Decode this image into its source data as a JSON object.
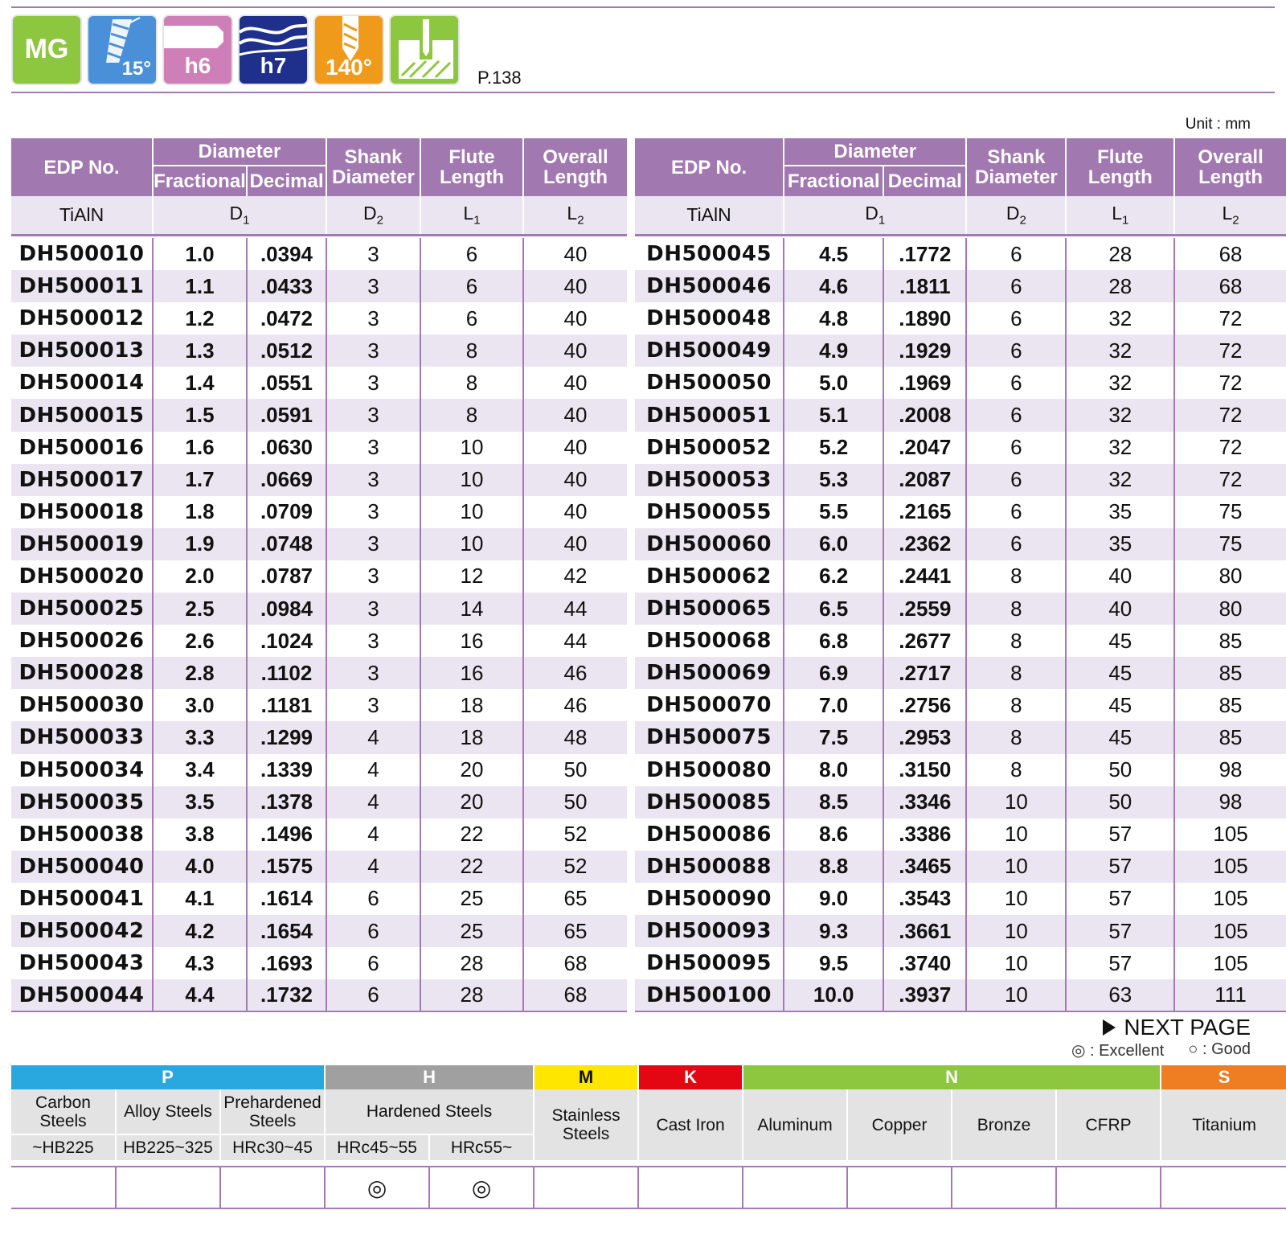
{
  "icons": [
    {
      "name": "mg",
      "label": "MG",
      "color": "#8dc63f"
    },
    {
      "name": "helix",
      "label": "15°",
      "color": "#4a90d9"
    },
    {
      "name": "shank-tol",
      "label": "h6",
      "color": "#cf7fb8"
    },
    {
      "name": "dia-tol",
      "label": "h7",
      "color": "#1e2f8c"
    },
    {
      "name": "point",
      "label": "140°",
      "color": "#f09a1c"
    },
    {
      "name": "application",
      "label": "",
      "color": "#8dc63f"
    }
  ],
  "page_ref": "P.138",
  "unit": "Unit : mm",
  "headers": {
    "edp": "EDP No.",
    "diameter": "Diameter",
    "fractional": "Fractional",
    "decimal": "Decimal",
    "shank1": "Shank",
    "shank2": "Diameter",
    "flute1": "Flute",
    "flute2": "Length",
    "overall1": "Overall",
    "overall2": "Length",
    "coating": "TiAlN",
    "d1": "D",
    "d1_sub": "1",
    "d2": "D",
    "d2_sub": "2",
    "l1": "L",
    "l1_sub": "1",
    "l2": "L",
    "l2_sub": "2"
  },
  "left_rows": [
    [
      "DH500010",
      "1.0",
      ".0394",
      "3",
      "6",
      "40"
    ],
    [
      "DH500011",
      "1.1",
      ".0433",
      "3",
      "6",
      "40"
    ],
    [
      "DH500012",
      "1.2",
      ".0472",
      "3",
      "6",
      "40"
    ],
    [
      "DH500013",
      "1.3",
      ".0512",
      "3",
      "8",
      "40"
    ],
    [
      "DH500014",
      "1.4",
      ".0551",
      "3",
      "8",
      "40"
    ],
    [
      "DH500015",
      "1.5",
      ".0591",
      "3",
      "8",
      "40"
    ],
    [
      "DH500016",
      "1.6",
      ".0630",
      "3",
      "10",
      "40"
    ],
    [
      "DH500017",
      "1.7",
      ".0669",
      "3",
      "10",
      "40"
    ],
    [
      "DH500018",
      "1.8",
      ".0709",
      "3",
      "10",
      "40"
    ],
    [
      "DH500019",
      "1.9",
      ".0748",
      "3",
      "10",
      "40"
    ],
    [
      "DH500020",
      "2.0",
      ".0787",
      "3",
      "12",
      "42"
    ],
    [
      "DH500025",
      "2.5",
      ".0984",
      "3",
      "14",
      "44"
    ],
    [
      "DH500026",
      "2.6",
      ".1024",
      "3",
      "16",
      "44"
    ],
    [
      "DH500028",
      "2.8",
      ".1102",
      "3",
      "16",
      "46"
    ],
    [
      "DH500030",
      "3.0",
      ".1181",
      "3",
      "18",
      "46"
    ],
    [
      "DH500033",
      "3.3",
      ".1299",
      "4",
      "18",
      "48"
    ],
    [
      "DH500034",
      "3.4",
      ".1339",
      "4",
      "20",
      "50"
    ],
    [
      "DH500035",
      "3.5",
      ".1378",
      "4",
      "20",
      "50"
    ],
    [
      "DH500038",
      "3.8",
      ".1496",
      "4",
      "22",
      "52"
    ],
    [
      "DH500040",
      "4.0",
      ".1575",
      "4",
      "22",
      "52"
    ],
    [
      "DH500041",
      "4.1",
      ".1614",
      "6",
      "25",
      "65"
    ],
    [
      "DH500042",
      "4.2",
      ".1654",
      "6",
      "25",
      "65"
    ],
    [
      "DH500043",
      "4.3",
      ".1693",
      "6",
      "28",
      "68"
    ],
    [
      "DH500044",
      "4.4",
      ".1732",
      "6",
      "28",
      "68"
    ]
  ],
  "right_rows": [
    [
      "DH500045",
      "4.5",
      ".1772",
      "6",
      "28",
      "68"
    ],
    [
      "DH500046",
      "4.6",
      ".1811",
      "6",
      "28",
      "68"
    ],
    [
      "DH500048",
      "4.8",
      ".1890",
      "6",
      "32",
      "72"
    ],
    [
      "DH500049",
      "4.9",
      ".1929",
      "6",
      "32",
      "72"
    ],
    [
      "DH500050",
      "5.0",
      ".1969",
      "6",
      "32",
      "72"
    ],
    [
      "DH500051",
      "5.1",
      ".2008",
      "6",
      "32",
      "72"
    ],
    [
      "DH500052",
      "5.2",
      ".2047",
      "6",
      "32",
      "72"
    ],
    [
      "DH500053",
      "5.3",
      ".2087",
      "6",
      "32",
      "72"
    ],
    [
      "DH500055",
      "5.5",
      ".2165",
      "6",
      "35",
      "75"
    ],
    [
      "DH500060",
      "6.0",
      ".2362",
      "6",
      "35",
      "75"
    ],
    [
      "DH500062",
      "6.2",
      ".2441",
      "8",
      "40",
      "80"
    ],
    [
      "DH500065",
      "6.5",
      ".2559",
      "8",
      "40",
      "80"
    ],
    [
      "DH500068",
      "6.8",
      ".2677",
      "8",
      "45",
      "85"
    ],
    [
      "DH500069",
      "6.9",
      ".2717",
      "8",
      "45",
      "85"
    ],
    [
      "DH500070",
      "7.0",
      ".2756",
      "8",
      "45",
      "85"
    ],
    [
      "DH500075",
      "7.5",
      ".2953",
      "8",
      "45",
      "85"
    ],
    [
      "DH500080",
      "8.0",
      ".3150",
      "8",
      "50",
      "98"
    ],
    [
      "DH500085",
      "8.5",
      ".3346",
      "10",
      "50",
      "98"
    ],
    [
      "DH500086",
      "8.6",
      ".3386",
      "10",
      "57",
      "105"
    ],
    [
      "DH500088",
      "8.8",
      ".3465",
      "10",
      "57",
      "105"
    ],
    [
      "DH500090",
      "9.0",
      ".3543",
      "10",
      "57",
      "105"
    ],
    [
      "DH500093",
      "9.3",
      ".3661",
      "10",
      "57",
      "105"
    ],
    [
      "DH500095",
      "9.5",
      ".3740",
      "10",
      "57",
      "105"
    ],
    [
      "DH500100",
      "10.0",
      ".3937",
      "10",
      "63",
      "111"
    ]
  ],
  "next_page": "NEXT PAGE",
  "legend": {
    "excellent": "◎ : Excellent",
    "good": "○ : Good"
  },
  "material_groups": [
    {
      "label": "P",
      "color": "#29a8e0",
      "span": 3
    },
    {
      "label": "H",
      "color": "#a0a0a0",
      "span": 2
    },
    {
      "label": "M",
      "color": "#ffe600",
      "span": 1,
      "text_color": "#111111"
    },
    {
      "label": "K",
      "color": "#e30613",
      "span": 1
    },
    {
      "label": "N",
      "color": "#8dc63f",
      "span": 4
    },
    {
      "label": "S",
      "color": "#ef7d22",
      "span": 1
    }
  ],
  "materials": {
    "carbon": "Carbon Steels",
    "alloy": "Alloy Steels",
    "prehardened": "Prehardened Steels",
    "hardened": "Hardened Steels",
    "stainless": "Stainless Steels",
    "cast_iron": "Cast Iron",
    "aluminum": "Aluminum",
    "copper": "Copper",
    "bronze": "Bronze",
    "cfrp": "CFRP",
    "titanium": "Titanium",
    "carbon_range": "~HB225",
    "alloy_range": "HB225~325",
    "prehardened_range": "HRc30~45",
    "hardened_range1": "HRc45~55",
    "hardened_range2": "HRc55~"
  },
  "ratings": [
    "",
    "",
    "",
    "◎",
    "◎",
    "",
    "",
    "",
    "",
    "",
    "",
    ""
  ]
}
